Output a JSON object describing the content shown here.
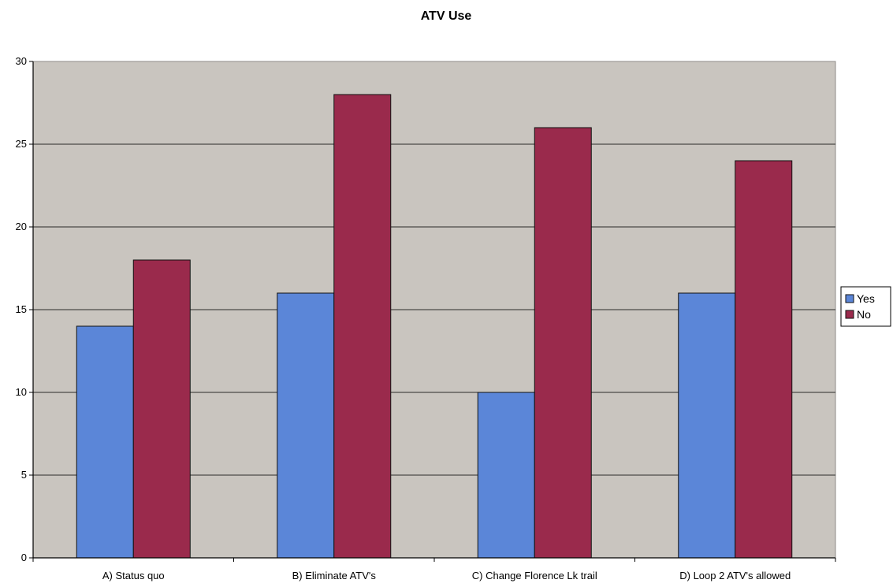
{
  "chart_data": {
    "type": "bar",
    "title": "ATV Use",
    "xlabel": "",
    "ylabel": "",
    "categories": [
      "A) Status quo",
      "B) Eliminate ATV's",
      "C) Change Florence Lk trail",
      "D) Loop 2 ATV's allowed"
    ],
    "series": [
      {
        "name": "Yes",
        "values": [
          14,
          16,
          10,
          16
        ],
        "color": "#5b86d8"
      },
      {
        "name": "No",
        "values": [
          18,
          28,
          26,
          24
        ],
        "color": "#9a2a4c"
      }
    ],
    "ylim": [
      0,
      30
    ],
    "yticks": [
      0,
      5,
      10,
      15,
      20,
      25,
      30
    ],
    "grid": true,
    "legend": "right",
    "plot_background": "#c9c5bf"
  }
}
